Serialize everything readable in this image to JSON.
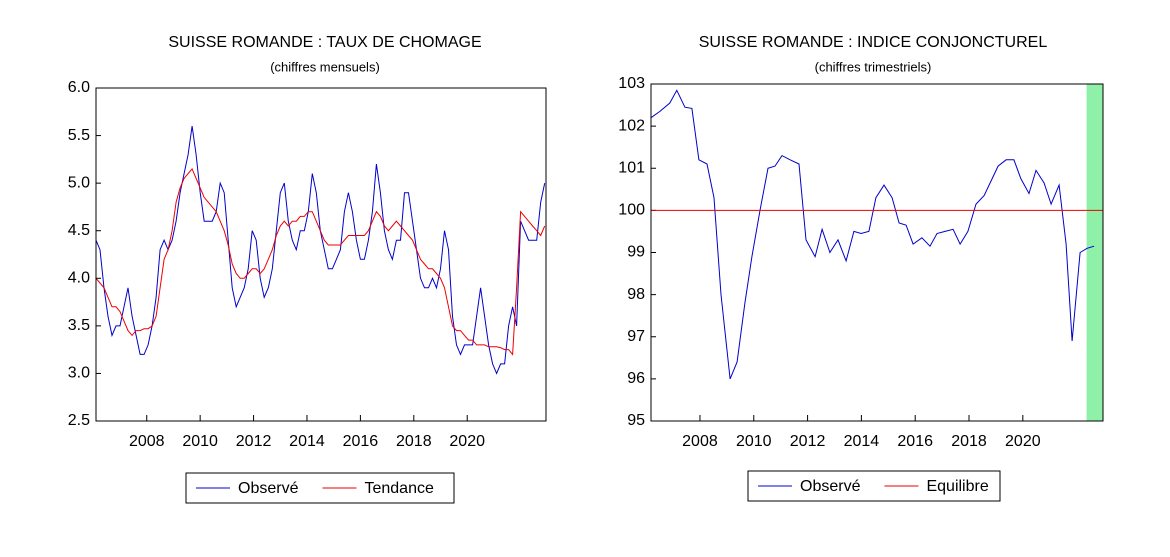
{
  "chart_data": [
    {
      "type": "line",
      "title": "SUISSE ROMANDE : TAUX DE CHOMAGE",
      "subtitle": "(chiffres mensuels)",
      "xlim": [
        2006.1,
        2022.95
      ],
      "xticks": [
        2008,
        2010,
        2012,
        2014,
        2016,
        2018,
        2020
      ],
      "ylim": [
        2.5,
        6.0
      ],
      "yticks": [
        {
          "value": 2.5,
          "label": "2.5"
        },
        {
          "value": 3,
          "label": "3.0"
        },
        3.5,
        {
          "value": 4,
          "label": "4.0"
        },
        4.5,
        {
          "value": 5,
          "label": "5.0"
        },
        5.5,
        {
          "value": 6,
          "label": "6.0"
        }
      ],
      "legend": "bottom",
      "series": [
        {
          "name": "Observé",
          "color": "#0000cc",
          "x": [
            2006.1,
            2006.25,
            2006.4,
            2006.55,
            2006.7,
            2006.85,
            2007,
            2007.15,
            2007.3,
            2007.45,
            2007.6,
            2007.75,
            2007.9,
            2008.05,
            2008.2,
            2008.35,
            2008.5,
            2008.65,
            2008.8,
            2008.95,
            2009.1,
            2009.25,
            2009.4,
            2009.55,
            2009.7,
            2009.85,
            2010,
            2010.15,
            2010.3,
            2010.45,
            2010.6,
            2010.75,
            2010.9,
            2011.05,
            2011.2,
            2011.35,
            2011.5,
            2011.65,
            2011.8,
            2011.95,
            2012.1,
            2012.25,
            2012.4,
            2012.55,
            2012.7,
            2012.85,
            2013,
            2013.15,
            2013.3,
            2013.45,
            2013.6,
            2013.75,
            2013.9,
            2014.05,
            2014.2,
            2014.35,
            2014.5,
            2014.65,
            2014.8,
            2014.95,
            2015.1,
            2015.25,
            2015.4,
            2015.55,
            2015.7,
            2015.85,
            2016,
            2016.15,
            2016.3,
            2016.45,
            2016.6,
            2016.75,
            2016.9,
            2017.05,
            2017.2,
            2017.35,
            2017.5,
            2017.65,
            2017.8,
            2017.95,
            2018.1,
            2018.25,
            2018.4,
            2018.55,
            2018.7,
            2018.85,
            2019,
            2019.15,
            2019.3,
            2019.45,
            2019.6,
            2019.75,
            2019.9,
            2020.05,
            2020.2,
            2020.35,
            2020.5,
            2020.65,
            2020.8,
            2020.95,
            2021.1,
            2021.25,
            2021.4,
            2021.55,
            2021.7,
            2021.85,
            2022,
            2022.15,
            2022.3,
            2022.45,
            2022.6,
            2022.75,
            2022.9
          ],
          "values": [
            4.4,
            4.3,
            3.9,
            3.6,
            3.4,
            3.5,
            3.5,
            3.7,
            3.9,
            3.6,
            3.4,
            3.2,
            3.2,
            3.3,
            3.5,
            3.8,
            4.3,
            4.4,
            4.3,
            4.4,
            4.6,
            4.9,
            5.1,
            5.3,
            5.6,
            5.3,
            4.9,
            4.6,
            4.6,
            4.6,
            4.7,
            5.0,
            4.9,
            4.4,
            3.9,
            3.7,
            3.8,
            3.9,
            4.1,
            4.5,
            4.4,
            4.0,
            3.8,
            3.9,
            4.1,
            4.5,
            4.9,
            5.0,
            4.6,
            4.4,
            4.3,
            4.5,
            4.5,
            4.7,
            5.1,
            4.9,
            4.5,
            4.3,
            4.1,
            4.1,
            4.2,
            4.3,
            4.7,
            4.9,
            4.7,
            4.4,
            4.2,
            4.2,
            4.4,
            4.7,
            5.2,
            4.9,
            4.5,
            4.3,
            4.2,
            4.4,
            4.4,
            4.9,
            4.9,
            4.6,
            4.3,
            4.0,
            3.9,
            3.9,
            4.0,
            3.9,
            4.1,
            4.5,
            4.3,
            3.6,
            3.3,
            3.2,
            3.3,
            3.3,
            3.3,
            3.6,
            3.9,
            3.6,
            3.3,
            3.1,
            3.0,
            3.1,
            3.1,
            3.5,
            3.7,
            3.5,
            4.6,
            4.5,
            4.4,
            4.4,
            4.4,
            4.8,
            5.0
          ]
        },
        {
          "name": "Tendance",
          "color": "#ee0000",
          "x": [
            2006.1,
            2006.25,
            2006.4,
            2006.55,
            2006.7,
            2006.85,
            2007,
            2007.15,
            2007.3,
            2007.45,
            2007.6,
            2007.75,
            2007.9,
            2008.05,
            2008.2,
            2008.35,
            2008.5,
            2008.65,
            2008.8,
            2008.95,
            2009.1,
            2009.25,
            2009.4,
            2009.55,
            2009.7,
            2009.85,
            2010,
            2010.15,
            2010.3,
            2010.45,
            2010.6,
            2010.75,
            2010.9,
            2011.05,
            2011.2,
            2011.35,
            2011.5,
            2011.65,
            2011.8,
            2011.95,
            2012.1,
            2012.25,
            2012.4,
            2012.55,
            2012.7,
            2012.85,
            2013,
            2013.15,
            2013.3,
            2013.45,
            2013.6,
            2013.75,
            2013.9,
            2014.05,
            2014.2,
            2014.35,
            2014.5,
            2014.65,
            2014.8,
            2014.95,
            2015.1,
            2015.25,
            2015.4,
            2015.55,
            2015.7,
            2015.85,
            2016,
            2016.15,
            2016.3,
            2016.45,
            2016.6,
            2016.75,
            2016.9,
            2017.05,
            2017.2,
            2017.35,
            2017.5,
            2017.65,
            2017.8,
            2017.95,
            2018.1,
            2018.25,
            2018.4,
            2018.55,
            2018.7,
            2018.85,
            2019,
            2019.15,
            2019.3,
            2019.45,
            2019.6,
            2019.75,
            2019.9,
            2020.05,
            2020.2,
            2020.35,
            2020.5,
            2020.65,
            2020.8,
            2020.95,
            2021.1,
            2021.25,
            2021.4,
            2021.55,
            2021.7,
            2021.85,
            2022,
            2022.15,
            2022.3,
            2022.45,
            2022.6,
            2022.75,
            2022.9
          ],
          "values": [
            4.0,
            3.95,
            3.9,
            3.8,
            3.7,
            3.7,
            3.65,
            3.55,
            3.45,
            3.4,
            3.45,
            3.45,
            3.47,
            3.47,
            3.5,
            3.6,
            3.9,
            4.2,
            4.3,
            4.5,
            4.8,
            4.95,
            5.05,
            5.1,
            5.15,
            5.05,
            4.95,
            4.85,
            4.8,
            4.75,
            4.7,
            4.6,
            4.5,
            4.35,
            4.15,
            4.05,
            4.0,
            4.0,
            4.05,
            4.1,
            4.1,
            4.05,
            4.1,
            4.2,
            4.3,
            4.45,
            4.55,
            4.6,
            4.55,
            4.6,
            4.6,
            4.65,
            4.65,
            4.7,
            4.7,
            4.6,
            4.5,
            4.4,
            4.35,
            4.35,
            4.35,
            4.35,
            4.4,
            4.45,
            4.45,
            4.45,
            4.45,
            4.45,
            4.5,
            4.6,
            4.7,
            4.65,
            4.55,
            4.5,
            4.55,
            4.6,
            4.55,
            4.5,
            4.45,
            4.4,
            4.3,
            4.2,
            4.15,
            4.1,
            4.1,
            4.05,
            4.0,
            3.9,
            3.7,
            3.5,
            3.45,
            3.45,
            3.4,
            3.35,
            3.35,
            3.3,
            3.3,
            3.3,
            3.28,
            3.28,
            3.28,
            3.27,
            3.25,
            3.25,
            3.2,
            3.9,
            4.7,
            4.65,
            4.6,
            4.55,
            4.5,
            4.45,
            4.55
          ]
        }
      ]
    },
    {
      "type": "line",
      "title": "SUISSE ROMANDE : INDICE CONJONCTUREL",
      "subtitle": "(chiffres trimestriels)",
      "xlim": [
        2006.18,
        2022.98
      ],
      "xticks": [
        2008,
        2010,
        2012,
        2014,
        2016,
        2018,
        2020
      ],
      "ylim": [
        95,
        103
      ],
      "yticks": [
        95,
        96,
        97,
        98,
        99,
        100,
        101,
        102,
        103
      ],
      "legend": "bottom",
      "shade": [
        2022.37,
        2022.98
      ],
      "shade_color": "#8ff0a8",
      "series": [
        {
          "name": "Observé",
          "color": "#0000cc",
          "x": [
            2006.18,
            2006.51,
            2006.88,
            2007.14,
            2007.44,
            2007.7,
            2007.96,
            2008.26,
            2008.52,
            2008.78,
            2009.12,
            2009.38,
            2009.67,
            2009.93,
            2010.23,
            2010.53,
            2010.79,
            2011.05,
            2011.35,
            2011.68,
            2011.94,
            2012.28,
            2012.54,
            2012.83,
            2013.13,
            2013.43,
            2013.72,
            2013.99,
            2014.28,
            2014.54,
            2014.84,
            2015.14,
            2015.4,
            2015.66,
            2015.92,
            2016.25,
            2016.55,
            2016.81,
            2017.11,
            2017.41,
            2017.67,
            2017.96,
            2018.26,
            2018.56,
            2018.82,
            2019.08,
            2019.38,
            2019.67,
            2019.93,
            2020.23,
            2020.49,
            2020.79,
            2021.05,
            2021.35,
            2021.61,
            2021.83,
            2022.13,
            2022.39,
            2022.65
          ],
          "values": [
            102.2,
            102.35,
            102.55,
            102.85,
            102.45,
            102.42,
            101.2,
            101.1,
            100.3,
            98.0,
            96.0,
            96.4,
            97.8,
            98.9,
            100.0,
            101.0,
            101.05,
            101.3,
            101.2,
            101.1,
            99.3,
            98.9,
            99.55,
            99.0,
            99.3,
            98.8,
            99.5,
            99.45,
            99.5,
            100.3,
            100.6,
            100.3,
            99.7,
            99.65,
            99.2,
            99.35,
            99.15,
            99.45,
            99.5,
            99.55,
            99.2,
            99.5,
            100.15,
            100.35,
            100.7,
            101.05,
            101.2,
            101.2,
            100.75,
            100.4,
            100.95,
            100.65,
            100.15,
            100.6,
            99.2,
            96.9,
            99.0,
            99.1,
            99.15
          ]
        },
        {
          "name": "Equilibre",
          "color": "#ee0000",
          "x": [
            2006.18,
            2022.98
          ],
          "values": [
            100,
            100
          ]
        }
      ]
    }
  ]
}
